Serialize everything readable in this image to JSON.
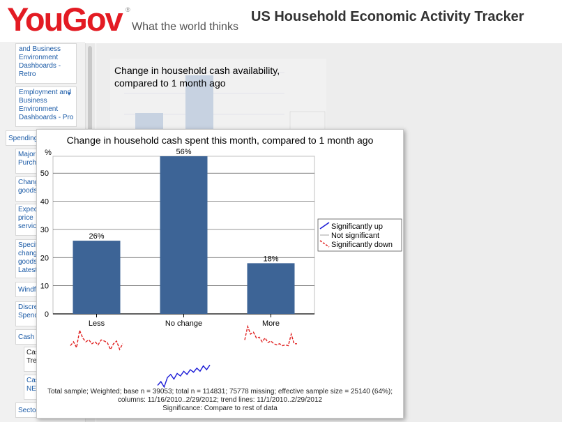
{
  "header": {
    "logo_text": "YouGov",
    "logo_reg": "®",
    "tagline": "What the world thinks",
    "app_title": "US Household Economic Activity Tracker"
  },
  "nav": {
    "items": [
      {
        "label": "and Business Environment Dashboards - Retro"
      },
      {
        "label": "Employment and Business Environment Dashboards - Pro"
      },
      {
        "label": "Spending"
      },
      {
        "label": "Major Purch"
      },
      {
        "label": "Chang goods"
      },
      {
        "label": "Expec price servic"
      },
      {
        "label": "Specif chang goods Latest"
      },
      {
        "label": "Windf"
      },
      {
        "label": "Discre Spend"
      },
      {
        "label": "Cash a"
      },
      {
        "label": "Cas Tre"
      },
      {
        "label": "Cas NE"
      },
      {
        "label": "Secto"
      }
    ],
    "expand_arrow": "▼"
  },
  "background": {
    "title": "Change in household cash availability, compared to 1 month ago"
  },
  "chart_data": {
    "type": "bar",
    "title": "Change in household cash spent this month, compared to 1 month ago",
    "ylabel": "%",
    "ylim": [
      0,
      56
    ],
    "yticks": [
      0,
      10,
      20,
      30,
      40,
      50
    ],
    "categories": [
      "Less",
      "No change",
      "More"
    ],
    "values": [
      26,
      56,
      18
    ],
    "value_labels": [
      "26%",
      "56%",
      "18%"
    ],
    "bar_color": "#3d6496",
    "grid": true,
    "legend": {
      "placement": "right",
      "entries": [
        {
          "label": "Significantly up",
          "color": "#1a1ad6",
          "style": "solid"
        },
        {
          "label": "Not significant",
          "color": "#888888",
          "style": "solid"
        },
        {
          "label": "Significantly down",
          "color": "#e02020",
          "style": "dashed"
        }
      ]
    },
    "trend_lines": [
      {
        "category": "Less",
        "significance": "Significantly down",
        "values": [
          50,
          60,
          45,
          90,
          70,
          60,
          65,
          55,
          60,
          52,
          65,
          62,
          58,
          40,
          55,
          62,
          40,
          55
        ]
      },
      {
        "category": "No change",
        "significance": "Significantly up",
        "values": [
          10,
          22,
          5,
          35,
          45,
          30,
          48,
          40,
          55,
          45,
          60,
          52,
          65,
          55,
          72,
          60,
          75
        ]
      },
      {
        "category": "More",
        "significance": "Significantly down",
        "values": [
          65,
          100,
          80,
          85,
          70,
          72,
          60,
          70,
          58,
          62,
          55,
          52,
          55,
          50,
          52,
          50,
          80,
          55,
          55
        ]
      }
    ]
  },
  "footnote": {
    "line1": "Total sample; Weighted; base n = 39053; total n = 114831; 75778 missing; effective sample size = 25140 (64%);",
    "line2": "columns: 11/16/2010..2/29/2012; trend lines: 11/1/2010..2/29/2012",
    "line3": "Significance: Compare to rest of data"
  }
}
